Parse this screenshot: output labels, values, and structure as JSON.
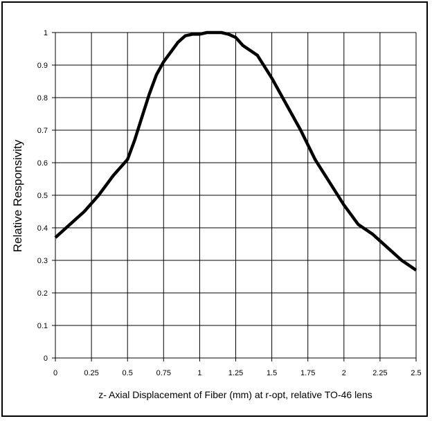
{
  "chart_data": {
    "type": "line",
    "xlabel": "z- Axial Displacement of Fiber (mm) at r-opt, relative TO-46 lens",
    "ylabel": "Relative Responsivity",
    "xlim": [
      0,
      2.5
    ],
    "ylim": [
      0,
      1
    ],
    "grid": true,
    "x_ticks": [
      "0",
      "0.25",
      "0.5",
      "0.75",
      "1",
      "1.25",
      "1.5",
      "1.75",
      "2",
      "2.25",
      "2.5"
    ],
    "y_ticks": [
      "0",
      "0.1",
      "0.2",
      "0.3",
      "0.4",
      "0.5",
      "0.6",
      "0.7",
      "0.8",
      "0.9",
      "1"
    ],
    "series": [
      {
        "color": "#000000",
        "x": [
          0,
          0.1,
          0.2,
          0.3,
          0.4,
          0.5,
          0.55,
          0.6,
          0.65,
          0.7,
          0.75,
          0.8,
          0.85,
          0.9,
          0.95,
          1.0,
          1.05,
          1.1,
          1.15,
          1.2,
          1.25,
          1.3,
          1.4,
          1.5,
          1.6,
          1.7,
          1.8,
          1.9,
          2.0,
          2.1,
          2.2,
          2.3,
          2.4,
          2.5
        ],
        "y": [
          0.37,
          0.41,
          0.45,
          0.5,
          0.56,
          0.61,
          0.67,
          0.74,
          0.81,
          0.87,
          0.91,
          0.94,
          0.97,
          0.99,
          0.995,
          0.995,
          1.0,
          1.0,
          1.0,
          0.995,
          0.985,
          0.96,
          0.93,
          0.86,
          0.78,
          0.7,
          0.61,
          0.54,
          0.47,
          0.41,
          0.38,
          0.34,
          0.3,
          0.27
        ]
      }
    ]
  }
}
